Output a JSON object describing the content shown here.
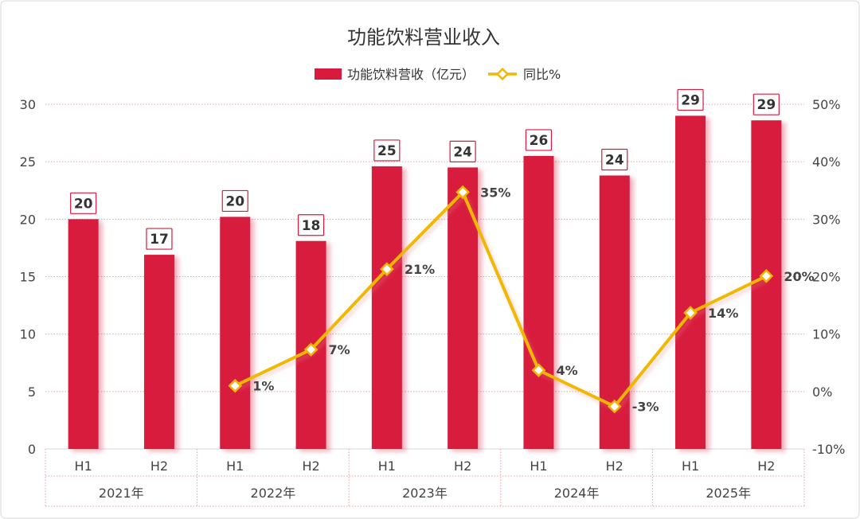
{
  "chart_data": {
    "type": "bar",
    "title": "功能饮料营业收入",
    "categories": [
      "H1",
      "H2",
      "H1",
      "H2",
      "H1",
      "H2",
      "H1",
      "H2",
      "H1",
      "H2"
    ],
    "groups": [
      "2021年",
      "2022年",
      "2023年",
      "2024年",
      "2025年"
    ],
    "series": [
      {
        "name": "功能饮料营收（亿元）",
        "type": "bar",
        "axis": "left",
        "values": [
          20.0,
          16.9,
          20.2,
          18.1,
          24.6,
          24.5,
          25.5,
          23.8,
          29.0,
          28.6
        ],
        "labels": [
          "20",
          "17",
          "20",
          "18",
          "25",
          "24",
          "26",
          "24",
          "29",
          "29"
        ],
        "color": "#d81b3c"
      },
      {
        "name": "同比%",
        "type": "line",
        "axis": "right",
        "values": [
          null,
          null,
          1,
          7.3,
          21.3,
          34.7,
          3.7,
          -2.6,
          13.7,
          20.1
        ],
        "labels": [
          "",
          "",
          "1%",
          "7%",
          "21%",
          "35%",
          "4%",
          "-3%",
          "14%",
          "20%"
        ],
        "color": "#f2b705"
      }
    ],
    "y_left": {
      "min": 0,
      "max": 30,
      "ticks": [
        "0",
        "5",
        "10",
        "15",
        "20",
        "25",
        "30"
      ]
    },
    "y_right": {
      "min": -10,
      "max": 50,
      "ticks": [
        "-10%",
        "0%",
        "10%",
        "20%",
        "30%",
        "40%",
        "50%"
      ]
    },
    "grid": true,
    "legend": "top-center"
  }
}
